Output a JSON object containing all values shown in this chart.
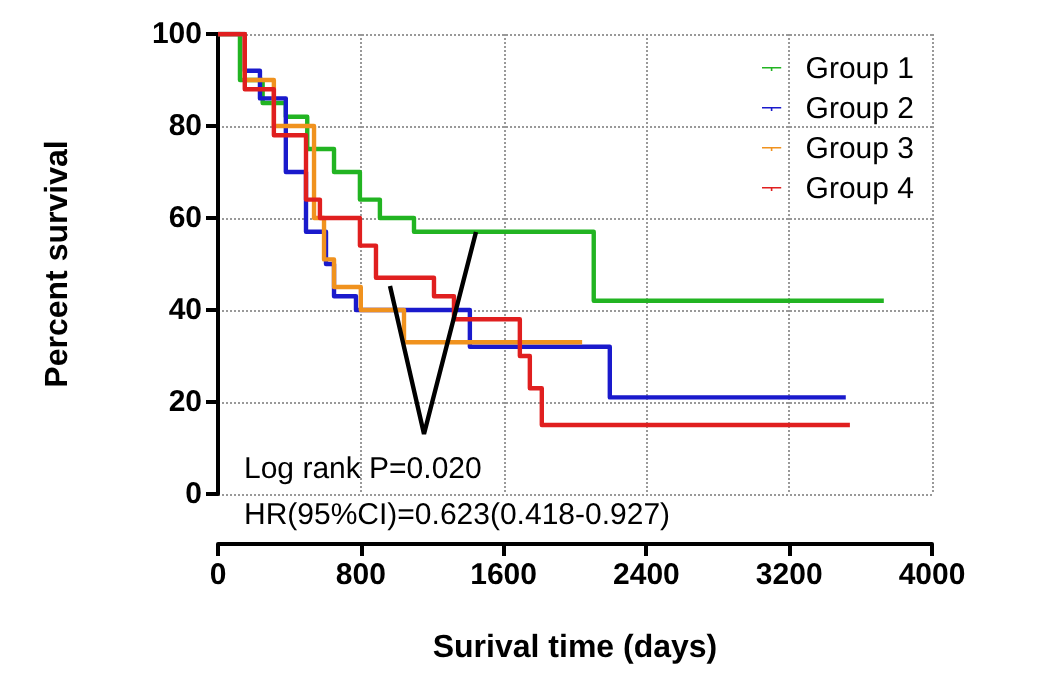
{
  "chart_data": {
    "type": "step",
    "xlabel": "Surival time (days)",
    "ylabel": "Percent survival",
    "xlim": [
      0,
      4000
    ],
    "xticks": [
      0,
      800,
      1600,
      2400,
      3200,
      4000
    ],
    "ylim": [
      0,
      100
    ],
    "yticks": [
      0,
      20,
      40,
      60,
      80,
      100
    ],
    "grid": true,
    "legend": "top right",
    "marker": "none",
    "line_style": "solid",
    "annotations": [
      "Log rank P=0.020",
      "HR(95%CI)=0.623(0.418-0.927)"
    ],
    "series": [
      {
        "name": "Group 1",
        "color": "#22b422",
        "x": [
          0,
          123,
          250,
          380,
          500,
          650,
          795,
          907,
          1098,
          2105,
          3730
        ],
        "values": [
          100,
          90,
          85,
          82,
          75,
          70,
          64,
          60,
          57,
          42,
          42
        ]
      },
      {
        "name": "Group 2",
        "color": "#1a1acc",
        "x": [
          0,
          150,
          235,
          380,
          493,
          605,
          650,
          773,
          1411,
          2195,
          3517
        ],
        "values": [
          100,
          92,
          86,
          70,
          57,
          50,
          43,
          40,
          32,
          21,
          21
        ]
      },
      {
        "name": "Group 3",
        "color": "#f0921e",
        "x": [
          0,
          150,
          313,
          538,
          594,
          650,
          800,
          1042,
          2040
        ],
        "values": [
          100,
          90,
          80,
          60,
          51,
          45,
          40,
          33,
          33
        ]
      },
      {
        "name": "Group 4",
        "color": "#e01f1f",
        "x": [
          0,
          150,
          313,
          493,
          571,
          795,
          885,
          1210,
          1322,
          1691,
          1747,
          1814,
          3540
        ],
        "values": [
          100,
          88,
          78,
          64,
          60,
          54,
          47,
          43,
          38,
          30,
          23,
          15,
          15
        ]
      }
    ]
  }
}
